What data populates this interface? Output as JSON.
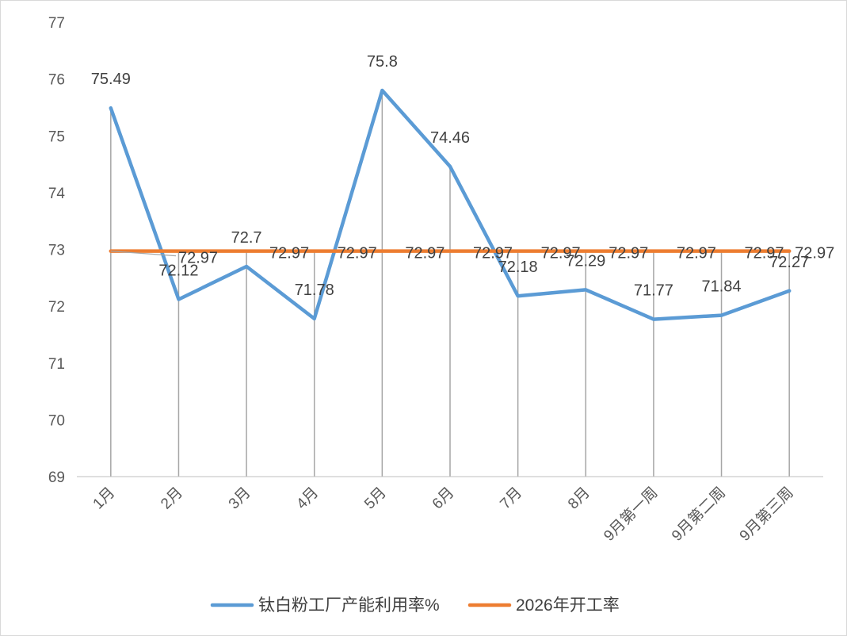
{
  "chart_data": {
    "type": "line",
    "categories": [
      "1月",
      "2月",
      "3月",
      "4月",
      "5月",
      "6月",
      "7月",
      "8月",
      "9月第一周",
      "9月第二周",
      "9月第三周"
    ],
    "series": [
      {
        "name": "钛白粉工厂产能利用率%",
        "values": [
          75.49,
          72.12,
          72.7,
          71.78,
          75.8,
          74.46,
          72.18,
          72.29,
          71.77,
          71.84,
          72.27
        ],
        "color": "#5B9BD5"
      },
      {
        "name": "2026年开工率",
        "values": [
          72.97,
          72.97,
          72.97,
          72.97,
          72.97,
          72.97,
          72.97,
          72.97,
          72.97,
          72.97,
          72.97
        ],
        "color": "#ED7D31"
      }
    ],
    "ylim": [
      69,
      77
    ],
    "yticks": [
      69,
      70,
      71,
      72,
      73,
      74,
      75,
      76,
      77
    ],
    "grid": false,
    "drop_lines": true,
    "data_labels": true,
    "legend": "bottom"
  }
}
